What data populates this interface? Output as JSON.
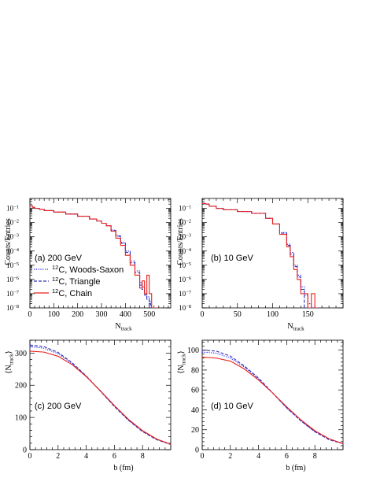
{
  "chart_data": [
    {
      "id": "a",
      "type": "line",
      "annotation": "(a) 200 GeV",
      "xlabel": "N_track",
      "ylabel": "Counts/Entries",
      "xlim": [
        0,
        590
      ],
      "ylim": [
        1e-08,
        0.5
      ],
      "yscale": "log",
      "x_ticks": [
        0,
        100,
        200,
        300,
        400,
        500
      ],
      "y_ticks": [
        1e-08,
        1e-07,
        1e-06,
        1e-05,
        0.0001,
        0.001,
        0.01,
        0.1
      ],
      "legend": {
        "placement": "center-right",
        "entries": [
          {
            "label": "12C, Woods-Saxon",
            "style": "dotted",
            "color": "#1a1aff"
          },
          {
            "label": "12C, Triangle",
            "style": "dashed",
            "color": "#3030b0"
          },
          {
            "label": "12C, Chain",
            "style": "solid",
            "color": "#e8201c"
          }
        ]
      },
      "series": [
        {
          "name": "12C, Woods-Saxon",
          "style": "dotted",
          "color": "#1a1aff",
          "x": [
            0,
            10,
            20,
            40,
            60,
            100,
            150,
            200,
            250,
            280,
            300,
            320,
            340,
            360,
            380,
            400,
            420,
            440,
            460,
            470,
            480,
            490,
            500,
            505,
            510,
            515
          ],
          "y": [
            0.15,
            0.12,
            0.1,
            0.085,
            0.07,
            0.055,
            0.04,
            0.028,
            0.018,
            0.013,
            0.009,
            0.006,
            0.003,
            0.0012,
            0.0004,
            0.0001,
            2e-05,
            4e-06,
            6e-07,
            3e-07,
            1e-07,
            6e-08,
            3e-08,
            1.5e-08,
            1e-08,
            1e-08
          ]
        },
        {
          "name": "12C, Triangle",
          "style": "dashed",
          "color": "#3030b0",
          "x": [
            0,
            10,
            20,
            40,
            60,
            100,
            150,
            200,
            250,
            280,
            300,
            320,
            340,
            360,
            380,
            400,
            420,
            440,
            460,
            470,
            480,
            490,
            500,
            505,
            510
          ],
          "y": [
            0.15,
            0.12,
            0.1,
            0.085,
            0.07,
            0.055,
            0.04,
            0.028,
            0.018,
            0.013,
            0.009,
            0.006,
            0.0028,
            0.0011,
            0.00035,
            8e-05,
            1.5e-05,
            3e-06,
            4e-07,
            2e-07,
            8e-08,
            4e-08,
            2e-08,
            1e-08,
            1e-08
          ]
        },
        {
          "name": "12C, Chain",
          "style": "solid",
          "color": "#e8201c",
          "x": [
            0,
            10,
            20,
            40,
            60,
            100,
            150,
            200,
            250,
            280,
            300,
            320,
            340,
            360,
            380,
            400,
            420,
            440,
            460,
            470,
            480,
            490,
            500,
            510,
            520
          ],
          "y": [
            0.15,
            0.12,
            0.1,
            0.085,
            0.07,
            0.055,
            0.04,
            0.028,
            0.018,
            0.013,
            0.009,
            0.006,
            0.0025,
            0.0008,
            0.00025,
            5e-05,
            1e-05,
            2e-06,
            2.5e-07,
            8e-07,
            1e-07,
            2e-06,
            1e-07,
            1e-08,
            1e-08
          ]
        }
      ]
    },
    {
      "id": "b",
      "type": "line",
      "annotation": "(b) 10 GeV",
      "xlabel": "N_track",
      "ylabel": "Counts/Entries",
      "xlim": [
        0,
        200
      ],
      "ylim": [
        1e-08,
        0.5
      ],
      "yscale": "log",
      "x_ticks": [
        0,
        50,
        100,
        150
      ],
      "y_ticks": [
        1e-08,
        1e-07,
        1e-06,
        1e-05,
        0.0001,
        0.001,
        0.01,
        0.1
      ],
      "series": [
        {
          "name": "12C, Woods-Saxon",
          "style": "dotted",
          "color": "#1a1aff",
          "x": [
            0,
            5,
            10,
            20,
            30,
            50,
            70,
            90,
            100,
            110,
            120,
            125,
            130,
            135,
            140,
            145,
            150,
            155,
            160
          ],
          "y": [
            0.22,
            0.2,
            0.14,
            0.1,
            0.08,
            0.06,
            0.045,
            0.02,
            0.008,
            0.002,
            0.0003,
            8e-05,
            1e-05,
            2e-06,
            3e-07,
            8e-08,
            2e-08,
            1e-08,
            1e-08
          ]
        },
        {
          "name": "12C, Triangle",
          "style": "dashed",
          "color": "#3030b0",
          "x": [
            0,
            5,
            10,
            20,
            30,
            50,
            70,
            90,
            100,
            110,
            120,
            125,
            130,
            135,
            140,
            145,
            150
          ],
          "y": [
            0.22,
            0.2,
            0.14,
            0.1,
            0.08,
            0.06,
            0.045,
            0.02,
            0.008,
            0.0018,
            0.00025,
            6e-05,
            8e-06,
            1.5e-06,
            2e-07,
            1e-08,
            1e-08
          ]
        },
        {
          "name": "12C, Chain",
          "style": "solid",
          "color": "#e8201c",
          "x": [
            0,
            5,
            10,
            20,
            30,
            50,
            70,
            90,
            100,
            110,
            120,
            125,
            130,
            135,
            140,
            145,
            150,
            155,
            160
          ],
          "y": [
            0.22,
            0.2,
            0.14,
            0.1,
            0.08,
            0.06,
            0.045,
            0.02,
            0.008,
            0.0015,
            0.0002,
            4e-05,
            5e-06,
            1e-06,
            1e-07,
            1e-07,
            1e-08,
            1e-07,
            1e-08
          ]
        }
      ]
    },
    {
      "id": "c",
      "type": "line",
      "annotation": "(c) 200 GeV",
      "xlabel": "b (fm)",
      "ylabel": "⟨N_track⟩",
      "xlim": [
        0,
        10
      ],
      "ylim": [
        0,
        340
      ],
      "yscale": "linear",
      "x_ticks": [
        0,
        2,
        4,
        6,
        8
      ],
      "y_ticks": [
        0,
        100,
        200,
        300
      ],
      "series": [
        {
          "name": "12C, Woods-Saxon",
          "style": "dotted",
          "color": "#1a1aff",
          "x": [
            0,
            1,
            2,
            3,
            4,
            5,
            6,
            7,
            8,
            9,
            10
          ],
          "y": [
            320,
            315,
            298,
            268,
            228,
            182,
            135,
            92,
            57,
            32,
            17
          ]
        },
        {
          "name": "12C, Triangle",
          "style": "dashed",
          "color": "#3030b0",
          "x": [
            0,
            1,
            2,
            3,
            4,
            5,
            6,
            7,
            8,
            9,
            10
          ],
          "y": [
            325,
            320,
            302,
            270,
            229,
            182,
            134,
            91,
            56,
            31,
            16
          ]
        },
        {
          "name": "12C, Chain",
          "style": "solid",
          "color": "#e8201c",
          "x": [
            0,
            1,
            2,
            3,
            4,
            5,
            6,
            7,
            8,
            9,
            10
          ],
          "y": [
            306,
            303,
            290,
            264,
            227,
            183,
            137,
            94,
            59,
            33,
            17
          ]
        }
      ]
    },
    {
      "id": "d",
      "type": "line",
      "annotation": "(d) 10 GeV",
      "xlabel": "b (fm)",
      "ylabel": "⟨N_track⟩",
      "xlim": [
        0,
        10
      ],
      "ylim": [
        0,
        110
      ],
      "yscale": "linear",
      "x_ticks": [
        0,
        2,
        4,
        6,
        8
      ],
      "y_ticks": [
        0,
        20,
        40,
        60,
        80,
        100
      ],
      "series": [
        {
          "name": "12C, Woods-Saxon",
          "style": "dotted",
          "color": "#1a1aff",
          "x": [
            0,
            1,
            2,
            3,
            4,
            5,
            6,
            7,
            8,
            9,
            10
          ],
          "y": [
            98,
            97,
            92,
            83,
            71,
            57,
            42,
            29,
            18,
            11,
            6
          ]
        },
        {
          "name": "12C, Triangle",
          "style": "dashed",
          "color": "#3030b0",
          "x": [
            0,
            1,
            2,
            3,
            4,
            5,
            6,
            7,
            8,
            9,
            10
          ],
          "y": [
            100,
            99,
            94,
            84,
            72,
            57,
            42,
            29,
            18,
            10,
            6
          ]
        },
        {
          "name": "12C, Chain",
          "style": "solid",
          "color": "#e8201c",
          "x": [
            0,
            1,
            2,
            3,
            4,
            5,
            6,
            7,
            8,
            9,
            10
          ],
          "y": [
            93,
            92,
            89,
            81,
            70,
            57,
            43,
            30,
            19,
            11,
            6
          ]
        }
      ]
    }
  ]
}
